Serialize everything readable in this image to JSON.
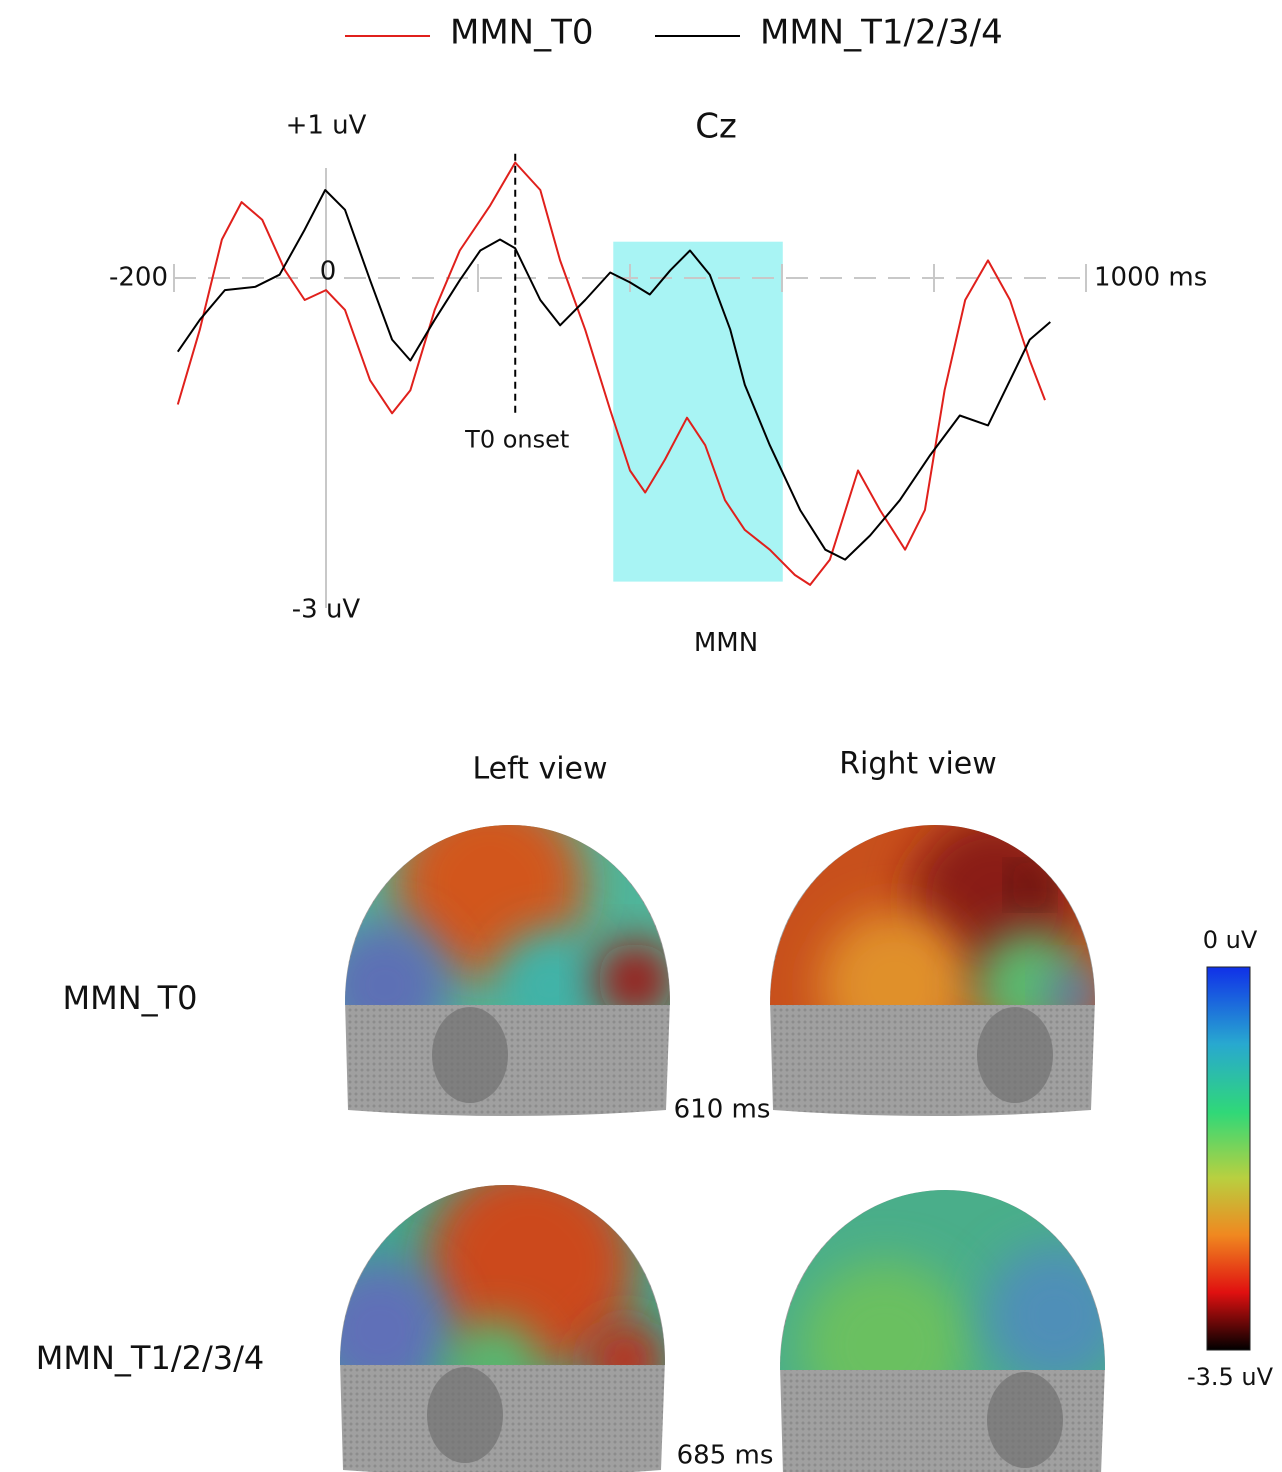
{
  "chart_data": {
    "type": "line",
    "title": "Cz",
    "xlim": [
      -200,
      1000
    ],
    "xticks": [
      -200,
      0,
      {
        "value": 1000,
        "label": "1000 ms"
      }
    ],
    "xminorticks": [
      200,
      400,
      600,
      800
    ],
    "ylim": [
      -3,
      1
    ],
    "yticks": [
      {
        "value": 1,
        "label": "+1 uV"
      },
      {
        "value": -3,
        "label": "-3 uV"
      }
    ],
    "onset": {
      "label": "T0 onset",
      "x": 249
    },
    "highlight": {
      "label": "MMN",
      "x": [
        378,
        601
      ],
      "y": [
        0.33,
        -2.76
      ],
      "color": "#a8f4f4"
    },
    "series": [
      {
        "name": "MMN_T0",
        "color": "#e0201c",
        "x": [
          -195,
          -166,
          -137,
          -111,
          -84,
          -54,
          -28,
          0,
          25,
          58,
          87,
          111,
          143,
          176,
          216,
          249,
          282,
          308,
          341,
          374,
          400,
          420,
          446,
          475,
          499,
          525,
          551,
          584,
          617,
          637,
          663,
          700,
          729,
          762,
          788,
          814,
          841,
          871,
          900,
          926,
          946
        ],
        "values": [
          -1.15,
          -0.47,
          0.35,
          0.69,
          0.53,
          0.07,
          -0.2,
          -0.11,
          -0.29,
          -0.93,
          -1.23,
          -1.02,
          -0.29,
          0.25,
          0.66,
          1.05,
          0.8,
          0.16,
          -0.47,
          -1.2,
          -1.75,
          -1.95,
          -1.65,
          -1.27,
          -1.52,
          -2.02,
          -2.29,
          -2.47,
          -2.7,
          -2.79,
          -2.56,
          -1.75,
          -2.11,
          -2.47,
          -2.11,
          -1.02,
          -0.2,
          0.16,
          -0.2,
          -0.75,
          -1.11
        ]
      },
      {
        "name": "MMN_T1/2/3/4",
        "color": "#000000",
        "x": [
          -195,
          -166,
          -133,
          -93,
          -61,
          -28,
          -1,
          25,
          58,
          87,
          111,
          143,
          176,
          203,
          229,
          249,
          282,
          308,
          341,
          374,
          400,
          426,
          453,
          479,
          505,
          532,
          551,
          584,
          624,
          657,
          683,
          716,
          755,
          795,
          834,
          871,
          900,
          926,
          953
        ],
        "values": [
          -0.67,
          -0.38,
          -0.11,
          -0.08,
          0.03,
          0.44,
          0.8,
          0.62,
          -0.02,
          -0.56,
          -0.75,
          -0.38,
          -0.02,
          0.25,
          0.35,
          0.27,
          -0.2,
          -0.43,
          -0.2,
          0.05,
          -0.04,
          -0.15,
          0.07,
          0.25,
          0.03,
          -0.47,
          -0.97,
          -1.52,
          -2.11,
          -2.47,
          -2.56,
          -2.34,
          -2.02,
          -1.61,
          -1.25,
          -1.34,
          -0.93,
          -0.56,
          -0.4
        ]
      }
    ]
  },
  "topography": {
    "views": [
      "Left view",
      "Right view"
    ],
    "rows": [
      {
        "label": "MMN_T0",
        "time": "610 ms"
      },
      {
        "label": "MMN_T1/2/3/4",
        "time": "685 ms"
      }
    ],
    "colorbar": {
      "lim": [
        -3.5,
        0
      ],
      "ticks": [
        {
          "value": 0,
          "label": "0 uV"
        },
        {
          "value": -3.5,
          "label": "-3.5 uV"
        }
      ]
    }
  }
}
